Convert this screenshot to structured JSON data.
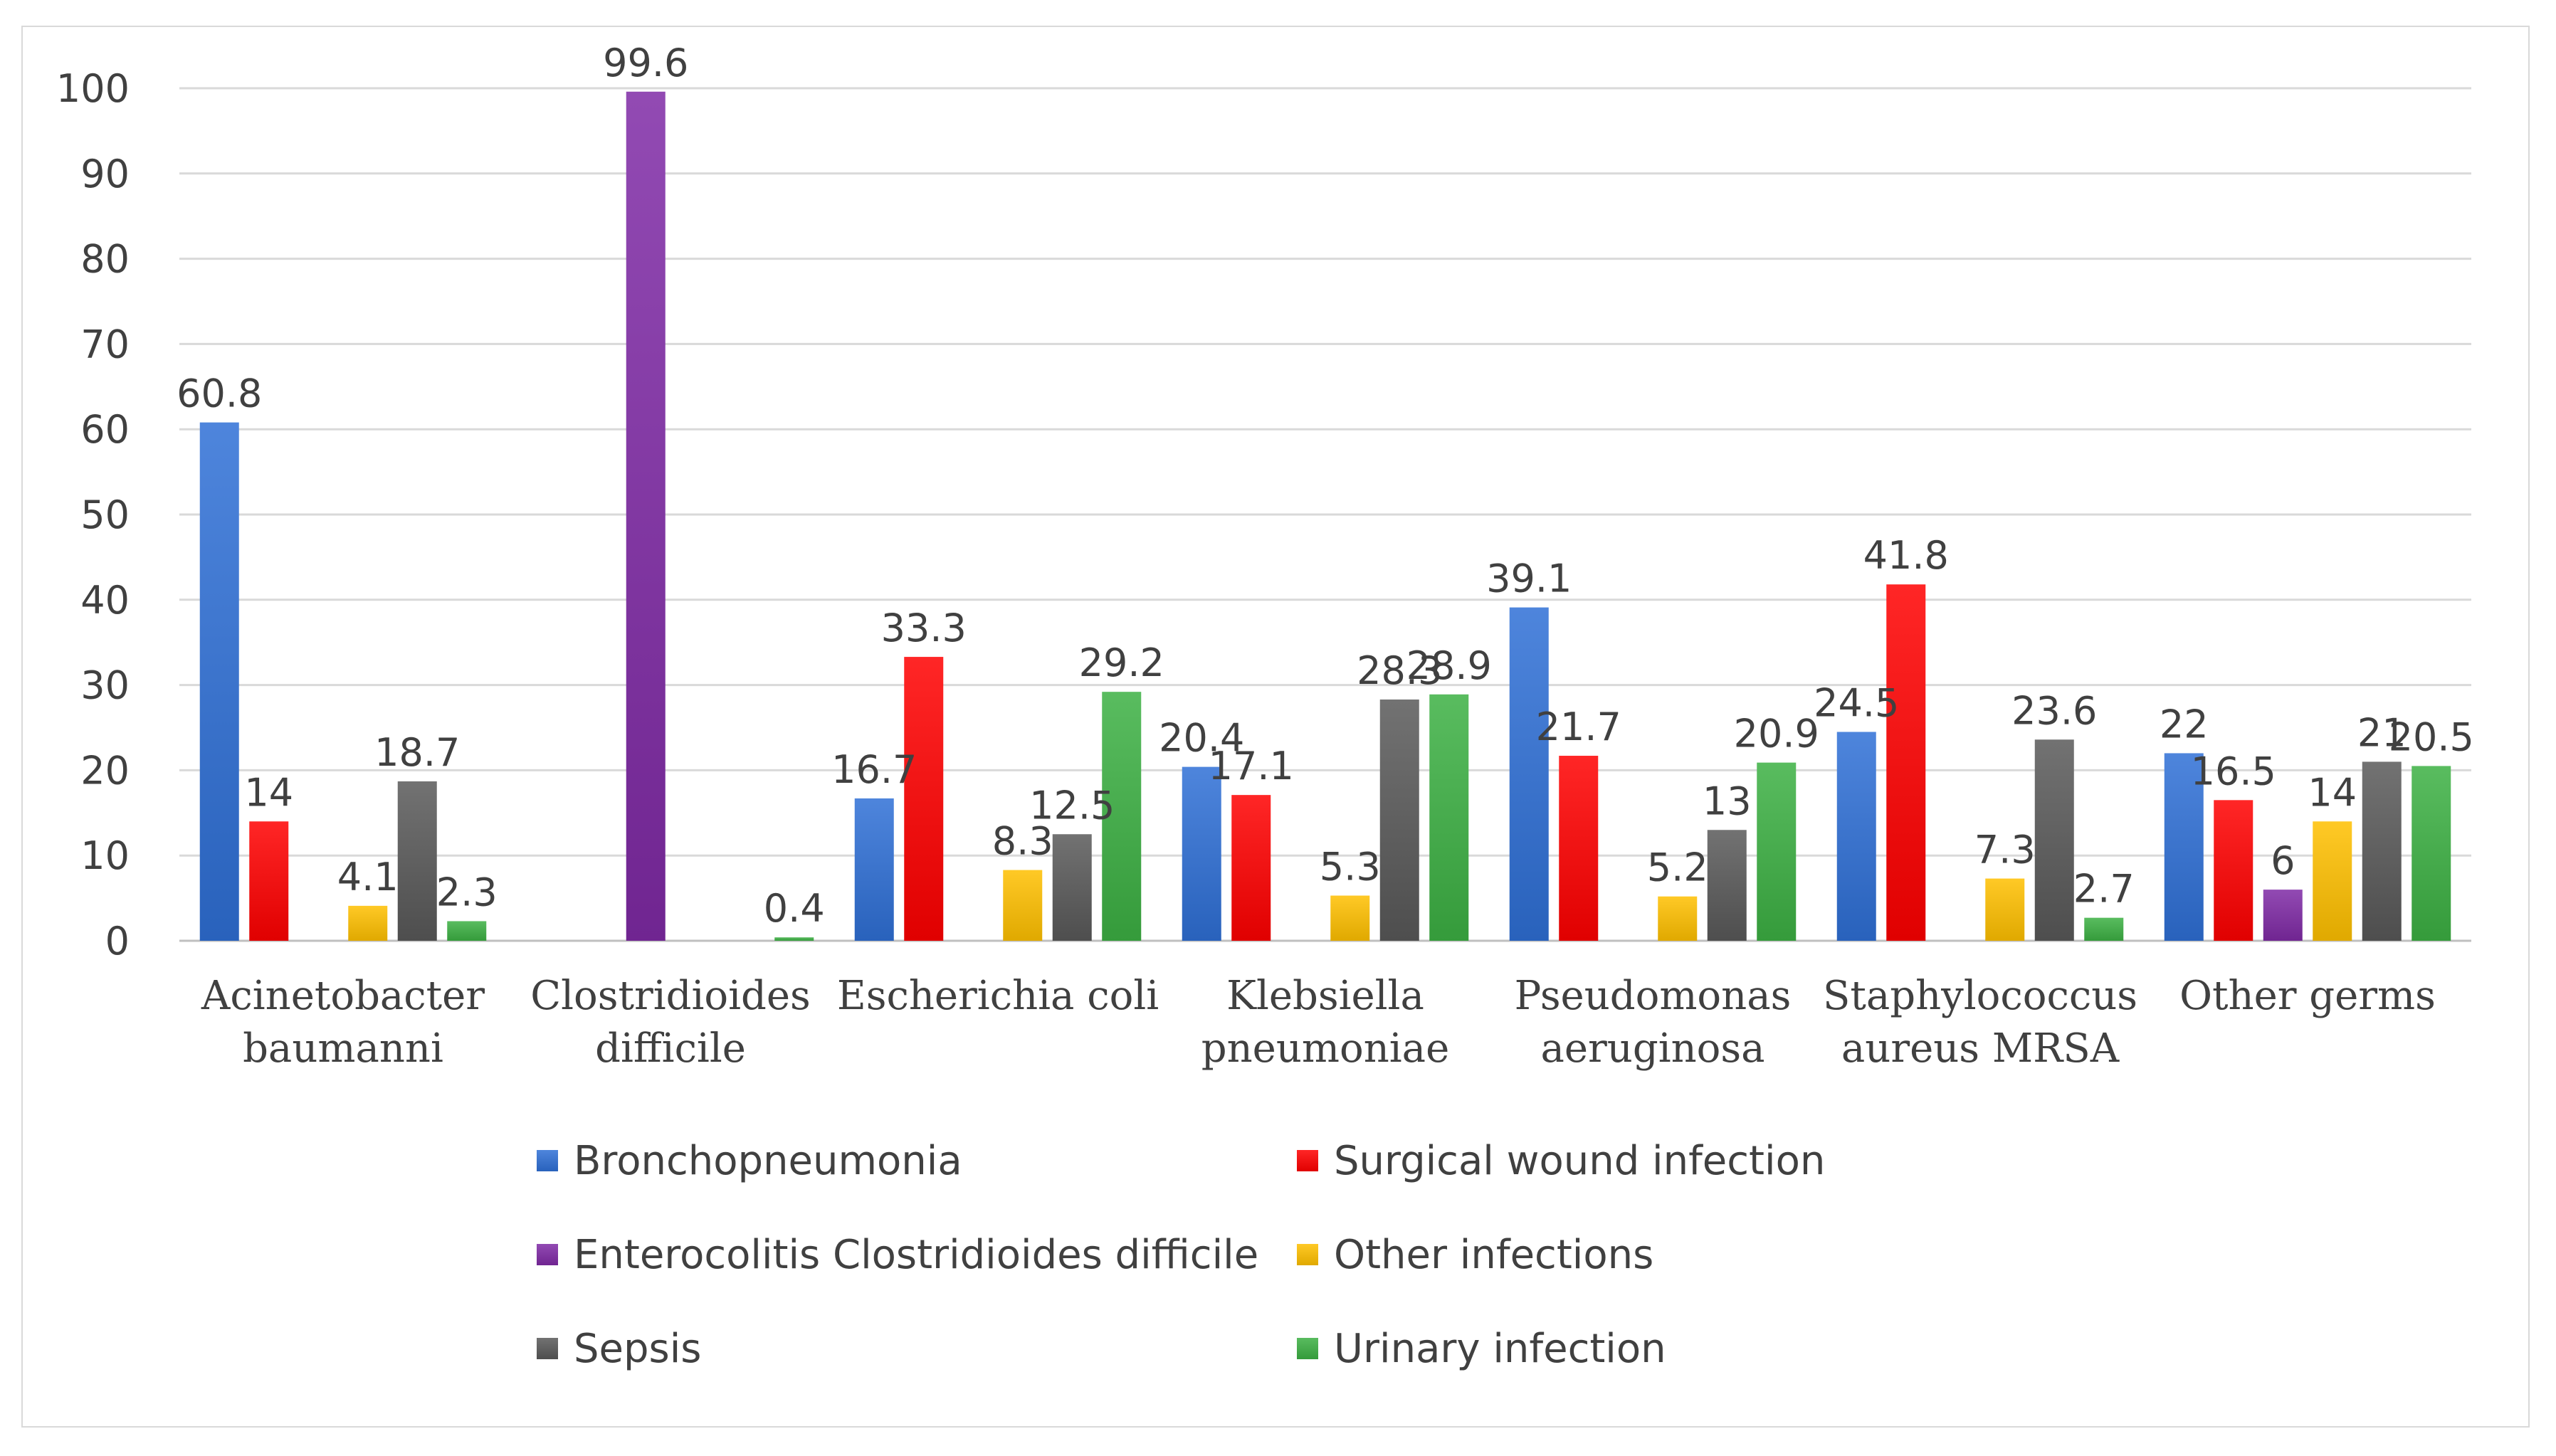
{
  "chart_data": {
    "type": "bar",
    "title": "",
    "xlabel": "",
    "ylabel": "",
    "ylim": [
      0,
      100
    ],
    "yticks": [
      0,
      10,
      20,
      30,
      40,
      50,
      60,
      70,
      80,
      90,
      100
    ],
    "grid": true,
    "legend_position": "bottom",
    "categories": [
      [
        "Acinetobacter",
        "baumanni"
      ],
      [
        "Clostridioides",
        "difficile"
      ],
      [
        "Escherichia coli"
      ],
      [
        "Klebsiella",
        "pneumoniae"
      ],
      [
        "Pseudomonas",
        "aeruginosa"
      ],
      [
        "Staphylococcus",
        "aureus MRSA"
      ],
      [
        "Other germs"
      ]
    ],
    "series": [
      {
        "name": "Bronchopneumonia",
        "color": "#2f6fd6",
        "values": [
          60.8,
          null,
          16.7,
          20.4,
          39.1,
          24.5,
          22
        ]
      },
      {
        "name": "Surgical wound infection",
        "color": "#ff0000",
        "values": [
          14,
          null,
          33.3,
          17.1,
          21.7,
          41.8,
          16.5
        ]
      },
      {
        "name": "Enterocolitis Clostridioides difficile",
        "color": "#7f2aa5",
        "values": [
          null,
          99.6,
          null,
          null,
          null,
          null,
          6
        ]
      },
      {
        "name": "Other infections",
        "color": "#ffc000",
        "values": [
          4.1,
          null,
          8.3,
          5.3,
          5.2,
          7.3,
          14
        ]
      },
      {
        "name": "Sepsis",
        "color": "#595959",
        "values": [
          18.7,
          null,
          12.5,
          28.3,
          13,
          23.6,
          21
        ]
      },
      {
        "name": "Urinary infection",
        "color": "#3cb043",
        "values": [
          2.3,
          0.4,
          29.2,
          28.9,
          20.9,
          2.7,
          20.5
        ]
      }
    ]
  }
}
